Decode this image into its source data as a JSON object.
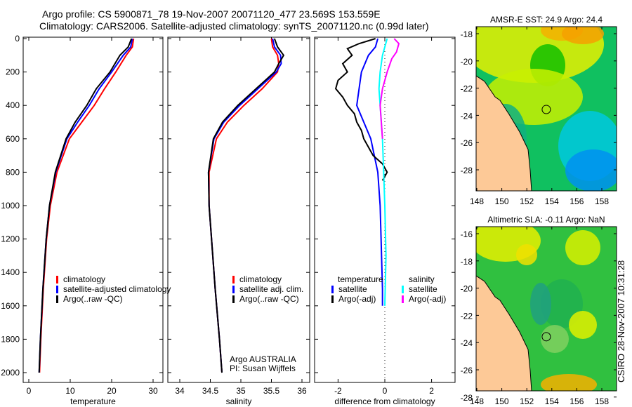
{
  "title": {
    "line1": "Argo profile: CS 5900871_78 19-Nov-2007 20071120_477 23.569S 153.559E",
    "line2": "Climatology: CARS2006. Satellite-adjusted climatology: synTS_20071120.nc (0.99d later)"
  },
  "footer_stamp": "CSIRO 28-Nov-2007 10:31:28",
  "colors": {
    "clim": "#ff0000",
    "sat": "#0000ff",
    "argo": "#000000",
    "sal_sat": "#00ffff",
    "sal_argo": "#ff00ff"
  },
  "chart_data": [
    {
      "type": "line",
      "id": "temperature",
      "xlabel": "temperature",
      "ylabel": "depth",
      "xlim": [
        -2,
        32
      ],
      "ylim": [
        2050,
        0
      ],
      "xticks": [
        0,
        10,
        20,
        30
      ],
      "yticks": [
        0,
        200,
        400,
        600,
        800,
        1000,
        1200,
        1400,
        1600,
        1800,
        2000
      ],
      "depth": [
        0,
        50,
        100,
        200,
        300,
        400,
        500,
        600,
        800,
        1000,
        1200,
        1500,
        1800,
        2000
      ],
      "series": [
        {
          "name": "climatology",
          "color": "#ff0000",
          "values": [
            25.3,
            25.0,
            23.5,
            21.0,
            18.3,
            15.8,
            12.8,
            9.8,
            6.8,
            5.2,
            4.3,
            3.5,
            2.9,
            2.6
          ]
        },
        {
          "name": "satellite-adjusted climatology",
          "color": "#0000ff",
          "values": [
            25.0,
            24.6,
            22.8,
            20.0,
            17.0,
            14.6,
            11.8,
            9.2,
            6.5,
            5.0,
            4.2,
            3.4,
            2.8,
            2.5
          ]
        },
        {
          "name": "Argo(..raw -QC)",
          "color": "#000000",
          "values": [
            24.8,
            24.0,
            22.0,
            19.6,
            16.3,
            14.0,
            11.2,
            9.0,
            6.4,
            5.0,
            4.2,
            3.4,
            2.8,
            2.5
          ]
        }
      ],
      "legend": [
        "climatology",
        "satellite-adjusted climatology",
        "Argo(..raw -QC)"
      ]
    },
    {
      "type": "line",
      "id": "salinity",
      "xlabel": "salinity",
      "xlim": [
        33.7,
        36.1
      ],
      "ylim": [
        2050,
        0
      ],
      "xticks": [
        34,
        34.5,
        35,
        35.5,
        36
      ],
      "depth": [
        0,
        50,
        100,
        150,
        200,
        300,
        400,
        500,
        600,
        800,
        1000,
        1200,
        1500,
        1800,
        2000
      ],
      "series": [
        {
          "name": "climatology",
          "color": "#ff0000",
          "values": [
            35.5,
            35.52,
            35.6,
            35.62,
            35.6,
            35.35,
            35.05,
            34.78,
            34.6,
            34.48,
            34.48,
            34.52,
            34.58,
            34.65,
            34.69
          ]
        },
        {
          "name": "satellite adj. clim.",
          "color": "#0000ff",
          "values": [
            35.52,
            35.55,
            35.65,
            35.66,
            35.58,
            35.28,
            34.98,
            34.72,
            34.56,
            34.47,
            34.48,
            34.52,
            34.58,
            34.65,
            34.69
          ]
        },
        {
          "name": "Argo(..raw -QC)",
          "color": "#000000",
          "values": [
            35.55,
            35.6,
            35.7,
            35.62,
            35.55,
            35.25,
            34.95,
            34.7,
            34.55,
            34.47,
            34.48,
            34.52,
            34.58,
            34.65,
            34.69
          ]
        }
      ],
      "legend": [
        "climatology",
        "satellite adj. clim.",
        "Argo(..raw -QC)"
      ],
      "annotation": [
        "Argo AUSTRALIA",
        "PI: Susan Wijffels"
      ]
    },
    {
      "type": "line",
      "id": "difference",
      "xlabel": "difference from climatology",
      "xlim": [
        -3.2,
        2.9
      ],
      "ylim": [
        2050,
        0
      ],
      "xticks": [
        -2,
        0,
        2
      ],
      "series": [
        {
          "name": "temperature satellite",
          "color": "#0000ff",
          "depth": [
            0,
            50,
            100,
            200,
            300,
            400,
            500,
            600,
            800,
            1000,
            1500,
            1600
          ],
          "values": [
            -0.3,
            -0.4,
            -0.7,
            -1.0,
            -1.1,
            -1.2,
            -0.9,
            -0.6,
            -0.3,
            -0.2,
            -0.1,
            -0.1
          ]
        },
        {
          "name": "temperature Argo(-adj)",
          "color": "#000000",
          "depth": [
            0,
            30,
            60,
            100,
            150,
            200,
            250,
            300,
            350,
            400,
            450,
            500,
            550,
            600,
            700,
            750,
            800,
            850
          ],
          "values": [
            -0.4,
            -1.1,
            -1.6,
            -1.4,
            -1.8,
            -1.6,
            -2.0,
            -2.1,
            -1.8,
            -1.6,
            -1.3,
            -1.2,
            -1.0,
            -0.9,
            -0.5,
            -0.1,
            0.1,
            -0.1
          ]
        },
        {
          "name": "salinity satellite",
          "color": "#00ffff",
          "depth": [
            0,
            100,
            200,
            300,
            400,
            600,
            800,
            1000,
            1300,
            1600
          ],
          "values": [
            0.1,
            -0.1,
            -0.2,
            -0.25,
            -0.2,
            -0.1,
            -0.05,
            0,
            0.05,
            0
          ]
        },
        {
          "name": "salinity Argo(-adj)",
          "color": "#ff00ff",
          "depth": [
            0,
            30,
            80,
            120,
            200,
            300,
            400,
            500,
            600
          ],
          "values": [
            0.4,
            0.6,
            0.5,
            0.3,
            0.1,
            -0.1,
            -0.2,
            -0.15,
            -0.1
          ]
        }
      ],
      "legend": {
        "temperature_header": "temperature",
        "salinity_header": "salinity",
        "items": [
          "satellite",
          "Argo(-adj)",
          "satellite",
          "Argo(-adj)"
        ]
      }
    },
    {
      "type": "heatmap",
      "id": "sst_map",
      "title": "AMSR-E SST: 24.9 Argo: 24.4",
      "xticks": [
        "148",
        "150",
        "152",
        "154",
        "156",
        "158"
      ],
      "yticks": [
        "-18",
        "-20",
        "-22",
        "-24",
        "-26",
        "-28"
      ],
      "marker": {
        "lon": 153.559,
        "lat": -23.569
      }
    },
    {
      "type": "heatmap",
      "id": "sla_map",
      "title": "Altimetric SLA: -0.11 Argo: NaN",
      "xticks": [
        "148",
        "150",
        "152",
        "154",
        "156",
        "158"
      ],
      "yticks": [
        "-16",
        "-18",
        "-20",
        "-22",
        "-24",
        "-26",
        "-28"
      ],
      "marker": {
        "lon": 153.559,
        "lat": -23.569
      }
    }
  ]
}
